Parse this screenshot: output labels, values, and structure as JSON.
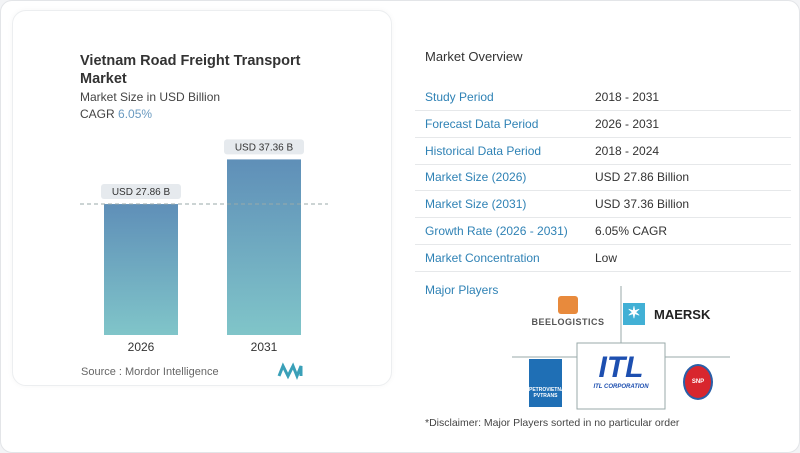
{
  "header": {
    "title": "Vietnam Road Freight Transport Market",
    "subtitle": "Market Size in USD Billion",
    "cagr_label": "CAGR",
    "cagr_value": "6.05%"
  },
  "chart_data": {
    "type": "bar",
    "categories": [
      "2026",
      "2031"
    ],
    "values": [
      27.86,
      37.36
    ],
    "data_labels": [
      "USD 27.86 B",
      "USD 37.36 B"
    ],
    "ylim": [
      0,
      40
    ],
    "grid": false,
    "reference_line": 27.86,
    "colors": {
      "top": "#5f8fb8",
      "bottom": "#7ec3c9"
    }
  },
  "source": "Source :  Mordor Intelligence",
  "overview": {
    "title": "Market Overview",
    "rows": [
      {
        "label": "Study Period",
        "value": "2018 - 2031"
      },
      {
        "label": "Forecast Data Period",
        "value": "2026 - 2031"
      },
      {
        "label": "Historical Data Period",
        "value": "2018 - 2024"
      },
      {
        "label": "Market Size (2026)",
        "value": "USD 27.86 Billion"
      },
      {
        "label": "Market Size (2031)",
        "value": "USD 37.36 Billion"
      },
      {
        "label": "Growth Rate (2026 - 2031)",
        "value": "6.05% CAGR"
      },
      {
        "label": "Market Concentration",
        "value": "Low"
      }
    ]
  },
  "players": {
    "title": "Major Players",
    "logos": [
      "BEELOGISTICS",
      "MAERSK",
      "PETROVIETNAM PVTRANS",
      "ITL CORPORATION",
      "SNP"
    ],
    "disclaimer": "*Disclaimer: Major Players sorted in no particular order"
  },
  "accent": "#2f82b5"
}
